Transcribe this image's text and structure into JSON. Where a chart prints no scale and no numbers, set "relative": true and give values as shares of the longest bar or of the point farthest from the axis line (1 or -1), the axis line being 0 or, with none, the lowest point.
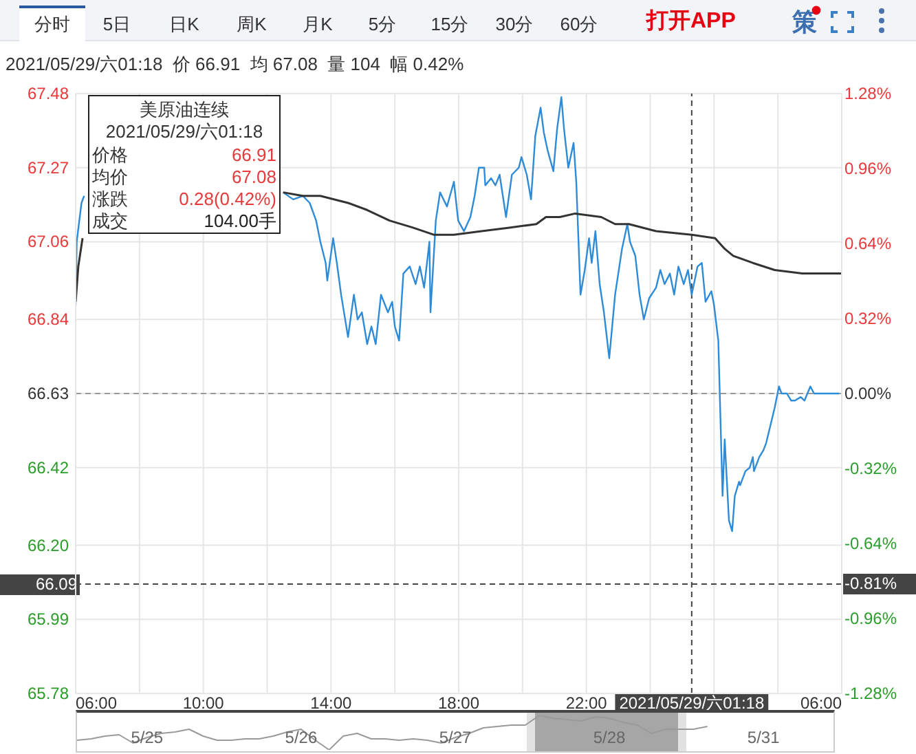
{
  "chart_data": [
    {
      "type": "line",
      "subtitle": "2021/05/29/六01:18  价 66.91  均 67.08  量 104  幅 0.42%",
      "annotations": [
        "分时",
        "5日",
        "日K",
        "周K",
        "月K",
        "5分",
        "15分",
        "30分",
        "60分",
        "打开APP",
        "策",
        "美原油连续",
        "2021/05/29/六01:18",
        "价格",
        "66.91",
        "均价",
        "67.08",
        "涨跌",
        "0.28(0.42%)",
        "成交",
        "104.00手",
        "-0.81%"
      ],
      "series": [
        {
          "color": "#2d8bd8",
          "x": [
            "2021-05-28T06:00",
            "2021-05-28T06:02",
            "2021-05-28T06:11",
            "2021-05-28T06:16",
            "2021-05-28T09:00",
            "2021-05-28T12:30",
            "2021-05-28T12:49",
            "2021-05-28T13:07",
            "2021-05-28T13:20",
            "2021-05-28T13:32",
            "2021-05-28T13:40",
            "2021-05-28T13:50",
            "2021-05-28T13:53",
            "2021-05-28T14:04",
            "2021-05-28T14:11",
            "2021-05-28T14:19",
            "2021-05-28T14:32",
            "2021-05-28T14:43",
            "2021-05-28T14:50",
            "2021-05-28T14:58",
            "2021-05-28T15:08",
            "2021-05-28T15:16",
            "2021-05-28T15:24",
            "2021-05-28T15:34",
            "2021-05-28T15:47",
            "2021-05-28T15:55",
            "2021-05-28T16:00",
            "2021-05-28T16:08",
            "2021-05-28T16:16",
            "2021-05-28T16:28",
            "2021-05-28T16:39",
            "2021-05-28T16:47",
            "2021-05-28T16:55",
            "2021-05-28T17:05",
            "2021-05-28T17:07",
            "2021-05-28T17:17",
            "2021-05-28T17:25",
            "2021-05-28T17:38",
            "2021-05-28T17:51",
            "2021-05-28T17:59",
            "2021-05-28T18:10",
            "2021-05-28T18:22",
            "2021-05-28T18:30",
            "2021-05-28T18:38",
            "2021-05-28T18:48",
            "2021-05-28T18:50",
            "2021-05-28T19:01",
            "2021-05-28T19:09",
            "2021-05-28T19:17",
            "2021-05-28T19:29",
            "2021-05-28T19:40",
            "2021-05-28T19:53",
            "2021-05-28T19:58",
            "2021-05-28T20:08",
            "2021-05-28T20:16",
            "2021-05-28T20:24",
            "2021-05-28T20:34",
            "2021-05-28T20:40",
            "2021-05-28T20:47",
            "2021-05-28T20:58",
            "2021-05-28T21:05",
            "2021-05-28T21:13",
            "2021-05-28T21:18",
            "2021-05-28T21:26",
            "2021-05-28T21:36",
            "2021-05-28T21:41",
            "2021-05-28T21:49",
            "2021-05-28T21:57",
            "2021-05-28T22:05",
            "2021-05-28T22:10",
            "2021-05-28T22:17",
            "2021-05-28T22:25",
            "2021-05-28T22:33",
            "2021-05-28T22:43",
            "2021-05-28T22:54",
            "2021-05-28T23:07",
            "2021-05-28T23:17",
            "2021-05-28T23:22",
            "2021-05-28T23:32",
            "2021-05-28T23:40",
            "2021-05-28T23:48",
            "2021-05-28T23:58",
            "2021-05-29T00:11",
            "2021-05-29T00:19",
            "2021-05-29T00:27",
            "2021-05-29T00:37",
            "2021-05-29T00:45",
            "2021-05-29T00:53",
            "2021-05-29T01:03",
            "2021-05-29T01:11",
            "2021-05-29T01:18",
            "2021-05-29T01:29",
            "2021-05-29T01:37",
            "2021-05-29T01:44",
            "2021-05-29T01:55",
            "2021-05-29T02:00",
            "2021-05-29T02:08",
            "2021-05-29T02:16",
            "2021-05-29T02:20",
            "2021-05-29T02:28",
            "2021-05-29T02:34",
            "2021-05-29T02:39",
            "2021-05-29T02:47",
            "2021-05-29T02:49",
            "2021-05-29T02:59",
            "2021-05-29T03:07",
            "2021-05-29T03:13",
            "2021-05-29T03:15",
            "2021-05-29T03:25",
            "2021-05-29T03:33",
            "2021-05-29T03:38",
            "2021-05-29T03:46",
            "2021-05-29T03:54",
            "2021-05-29T04:02",
            "2021-05-29T04:07",
            "2021-05-29T04:17",
            "2021-05-29T04:25",
            "2021-05-29T04:32",
            "2021-05-29T04:43",
            "2021-05-29T04:50",
            "2021-05-29T05:01",
            "2021-05-29T05:08",
            "2021-05-29T05:55"
          ],
          "values": [
            66.88,
            67.06,
            67.17,
            67.19,
            null,
            67.2,
            67.18,
            67.19,
            67.17,
            67.12,
            67.06,
            67.0,
            66.95,
            67.07,
            67.0,
            66.91,
            66.79,
            66.91,
            66.84,
            66.86,
            66.77,
            66.82,
            66.77,
            66.91,
            66.86,
            66.89,
            66.82,
            66.78,
            66.97,
            66.99,
            66.94,
            66.99,
            66.93,
            67.06,
            66.86,
            67.12,
            67.2,
            67.16,
            67.23,
            67.12,
            67.09,
            67.13,
            67.19,
            67.27,
            67.27,
            67.22,
            67.24,
            67.22,
            67.25,
            67.13,
            67.25,
            67.27,
            67.3,
            67.25,
            67.18,
            67.36,
            67.44,
            67.37,
            67.32,
            67.26,
            67.38,
            67.47,
            67.38,
            67.27,
            67.34,
            67.23,
            66.91,
            66.98,
            67.07,
            67.0,
            67.09,
            66.94,
            66.86,
            66.73,
            66.91,
            67.04,
            67.11,
            67.06,
            67.02,
            66.91,
            66.84,
            66.9,
            66.93,
            66.98,
            66.94,
            66.97,
            66.91,
            66.99,
            66.94,
            66.98,
            66.91,
            66.99,
            67.0,
            66.89,
            66.92,
            66.88,
            66.78,
            66.34,
            66.5,
            66.27,
            66.24,
            66.34,
            66.38,
            66.37,
            66.41,
            66.42,
            66.45,
            66.41,
            66.45,
            66.47,
            66.49,
            66.54,
            66.59,
            66.65,
            66.63,
            66.63,
            66.61,
            66.61,
            66.62,
            66.61,
            66.65,
            66.63,
            66.63
          ]
        },
        {
          "color": "#333333",
          "x": [
            "2021-05-28T06:00",
            "2021-05-28T06:05",
            "2021-05-28T06:13",
            "2021-05-28T09:00",
            "2021-05-28T12:30",
            "2021-05-28T13:07",
            "2021-05-28T13:40",
            "2021-05-28T14:32",
            "2021-05-28T15:08",
            "2021-05-28T15:50",
            "2021-05-28T16:34",
            "2021-05-28T17:13",
            "2021-05-28T17:51",
            "2021-05-28T18:43",
            "2021-05-28T19:35",
            "2021-05-28T20:26",
            "2021-05-28T20:44",
            "2021-05-28T21:10",
            "2021-05-28T21:39",
            "2021-05-28T22:28",
            "2021-05-28T22:54",
            "2021-05-28T23:20",
            "2021-05-29T00:11",
            "2021-05-29T01:18",
            "2021-05-29T02:02",
            "2021-05-29T02:20",
            "2021-05-29T02:36",
            "2021-05-29T03:13",
            "2021-05-29T03:54",
            "2021-05-29T04:46",
            "2021-05-29T06:00"
          ],
          "values": [
            66.89,
            66.99,
            67.07,
            null,
            67.2,
            67.19,
            67.19,
            67.17,
            67.15,
            67.12,
            67.1,
            67.08,
            67.08,
            67.09,
            67.1,
            67.11,
            67.13,
            67.13,
            67.14,
            67.13,
            67.11,
            67.11,
            67.09,
            67.08,
            67.07,
            67.04,
            67.02,
            67.0,
            66.98,
            66.97,
            66.97
          ]
        }
      ],
      "xlim": [
        "2021-05-28T06:00",
        "2021-05-29T06:00"
      ],
      "xticks": [
        {
          "value": "2021-05-28T06:00",
          "label": "06:00"
        },
        {
          "value": "2021-05-28T08:00",
          "label": null
        },
        {
          "value": "2021-05-28T10:00",
          "label": "10:00"
        },
        {
          "value": "2021-05-28T12:00",
          "label": null
        },
        {
          "value": "2021-05-28T14:00",
          "label": "14:00"
        },
        {
          "value": "2021-05-28T16:00",
          "label": null
        },
        {
          "value": "2021-05-28T18:00",
          "label": "18:00"
        },
        {
          "value": "2021-05-28T20:00",
          "label": null
        },
        {
          "value": "2021-05-28T22:00",
          "label": "22:00"
        },
        {
          "value": "2021-05-29T00:00",
          "label": null
        },
        {
          "value": "2021-05-29T02:00",
          "label": null
        },
        {
          "value": "2021-05-29T04:00",
          "label": null
        },
        {
          "value": "2021-05-29T06:00",
          "label": "06:00"
        }
      ],
      "ylim": [
        65.78,
        67.48
      ],
      "yticks": [
        65.78,
        65.99,
        {
          "value": 66.2,
          "label": "66.20"
        },
        66.42,
        66.63,
        66.84,
        67.06,
        67.27,
        67.48
      ],
      "y2lim": [
        -1.28,
        1.28
      ],
      "y2ticks": [
        {
          "value": -1.28,
          "label": "-1.28%"
        },
        {
          "value": -0.96,
          "label": "-0.96%"
        },
        {
          "value": -0.64,
          "label": "-0.64%"
        },
        {
          "value": -0.32,
          "label": "-0.32%"
        },
        {
          "value": 0,
          "label": "0.00%"
        },
        {
          "value": 0.32,
          "label": "0.32%"
        },
        {
          "value": 0.64,
          "label": "0.64%"
        },
        {
          "value": 0.96,
          "label": "0.96%"
        },
        {
          "value": 1.28,
          "label": "1.28%"
        }
      ],
      "ref_lines": [
        {
          "axis": "y",
          "value": 66.63,
          "color": "#999999",
          "line_style": "dashed"
        },
        {
          "axis": "y",
          "value": 66.09,
          "label": "66.09",
          "color": "#444444",
          "line_style": "dashed"
        },
        {
          "axis": "x",
          "value": "2021-05-29T01:18",
          "label": "2021/05/29/六01:18",
          "color": "#444444",
          "line_style": "dashed"
        }
      ],
      "grid": true
    },
    {
      "type": "line",
      "relative": true,
      "categories": [
        null,
        null,
        null,
        null,
        null,
        "5/25",
        null,
        null,
        null,
        null,
        null,
        null,
        null,
        null,
        null,
        null,
        "5/26",
        null,
        null,
        null,
        null,
        null,
        null,
        null,
        null,
        null,
        null,
        "5/27",
        null,
        null,
        null,
        null,
        null,
        null,
        null,
        null,
        null,
        null,
        "5/28",
        null,
        null,
        null,
        null,
        null,
        null,
        null,
        null,
        null,
        null,
        "5/31",
        null,
        null,
        null,
        null,
        null
      ],
      "series": [
        {
          "color": "#9a9a9a",
          "values": [
            0.28,
            0.32,
            0.4,
            0.44,
            0.2,
            0.36,
            0.48,
            0.52,
            0.6,
            0.4,
            0.28,
            0.28,
            0.32,
            0.32,
            0.4,
            0.52,
            0.6,
            0.28,
            0,
            0.4,
            0.48,
            0.32,
            0.32,
            0.28,
            0.32,
            0.28,
            0.2,
            0.36,
            0.48,
            0.64,
            0.68,
            0.72,
            0.72,
            1,
            0.92,
            0.88,
            0.84,
            0.96,
            0.92,
            0.8,
            0.72,
            0.48,
            0.6,
            0.6,
            0.6,
            0.68,
            null,
            null,
            null,
            null,
            null,
            null,
            null,
            null,
            null
          ]
        }
      ]
    }
  ]
}
